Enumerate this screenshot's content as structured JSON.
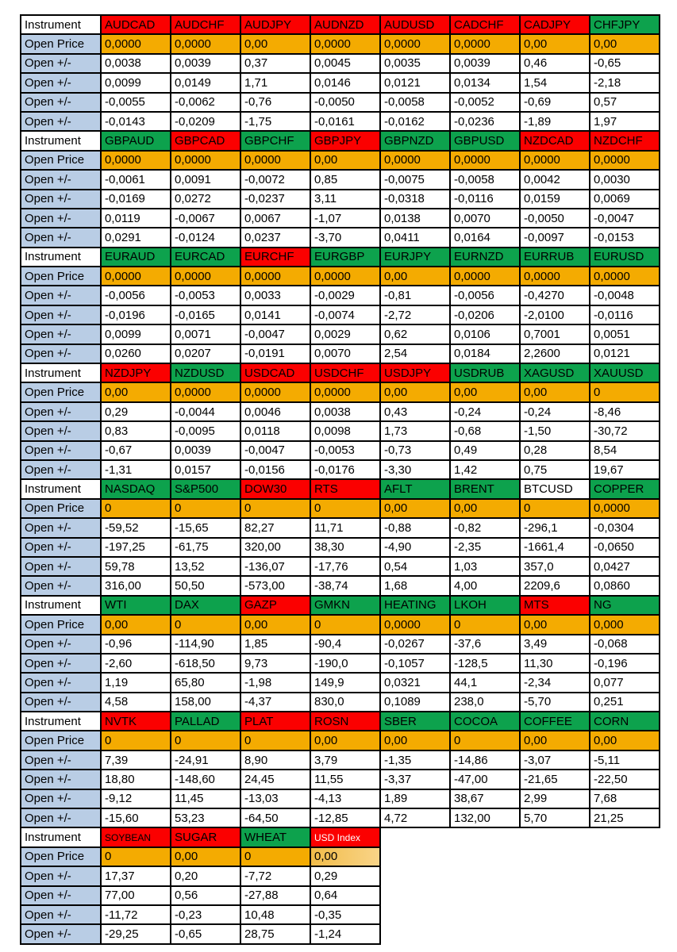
{
  "page": {
    "background": "#FFFFFF"
  },
  "table": {
    "row_labels": {
      "instrument": "Instrument",
      "open_price": "Open Price",
      "open_change": "Open +/-"
    },
    "colors": {
      "red": "#FB0000",
      "green": "#0DA24D",
      "white": "#FFFFFF",
      "orange": "#F4AB01",
      "orange_light_start": "#F1BC49",
      "orange_light_end": "#F9D488",
      "label_blue": "#B9CDE5",
      "label_white": "#FFFFFF",
      "border": "#000000",
      "cell_text": "#000000",
      "white_text": "#FFFFFF"
    },
    "blocks": [
      {
        "instruments": [
          {
            "name": "AUDCAD",
            "color": "red",
            "price": "0,0000",
            "changes": [
              "0,0038",
              "0,0099",
              "-0,0055",
              "-0,0143"
            ]
          },
          {
            "name": "AUDCHF",
            "color": "red",
            "price": "0,0000",
            "changes": [
              "0,0039",
              "0,0149",
              "-0,0062",
              "-0,0209"
            ]
          },
          {
            "name": "AUDJPY",
            "color": "red",
            "price": "0,00",
            "changes": [
              "0,37",
              "1,71",
              "-0,76",
              "-1,75"
            ]
          },
          {
            "name": "AUDNZD",
            "color": "red",
            "price": "0,0000",
            "changes": [
              "0,0045",
              "0,0146",
              "-0,0050",
              "-0,0161"
            ]
          },
          {
            "name": "AUDUSD",
            "color": "red",
            "price": "0,0000",
            "changes": [
              "0,0035",
              "0,0121",
              "-0,0058",
              "-0,0162"
            ]
          },
          {
            "name": "CADCHF",
            "color": "red",
            "price": "0,0000",
            "changes": [
              "0,0039",
              "0,0134",
              "-0,0052",
              "-0,0236"
            ]
          },
          {
            "name": "CADJPY",
            "color": "red",
            "price": "0,00",
            "changes": [
              "0,46",
              "1,54",
              "-0,69",
              "-1,89"
            ]
          },
          {
            "name": "CHFJPY",
            "color": "green",
            "price": "0,00",
            "changes": [
              "-0,65",
              "-2,18",
              "0,57",
              "1,97"
            ]
          }
        ]
      },
      {
        "instruments": [
          {
            "name": "GBPAUD",
            "color": "green",
            "price": "0,0000",
            "changes": [
              "-0,0061",
              "-0,0169",
              "0,0119",
              "0,0291"
            ]
          },
          {
            "name": "GBPCAD",
            "color": "red",
            "price": "0,0000",
            "changes": [
              "0,0091",
              "0,0272",
              "-0,0067",
              "-0,0124"
            ]
          },
          {
            "name": "GBPCHF",
            "color": "green",
            "price": "0,0000",
            "changes": [
              "-0,0072",
              "-0,0237",
              "0,0067",
              "0,0237"
            ]
          },
          {
            "name": "GBPJPY",
            "color": "red",
            "price": "0,00",
            "changes": [
              "0,85",
              "3,11",
              "-1,07",
              "-3,70"
            ]
          },
          {
            "name": "GBPNZD",
            "color": "green",
            "price": "0,0000",
            "changes": [
              "-0,0075",
              "-0,0318",
              "0,0138",
              "0,0411"
            ]
          },
          {
            "name": "GBPUSD",
            "color": "green",
            "price": "0,0000",
            "changes": [
              "-0,0058",
              "-0,0116",
              "0,0070",
              "0,0164"
            ]
          },
          {
            "name": "NZDCAD",
            "color": "red",
            "price": "0,0000",
            "changes": [
              "0,0042",
              "0,0159",
              "-0,0050",
              "-0,0097"
            ]
          },
          {
            "name": "NZDCHF",
            "color": "red",
            "price": "0,0000",
            "changes": [
              "0,0030",
              "0,0069",
              "-0,0047",
              "-0,0153"
            ]
          }
        ]
      },
      {
        "instruments": [
          {
            "name": "EURAUD",
            "color": "green",
            "price": "0,0000",
            "changes": [
              "-0,0056",
              "-0,0196",
              "0,0099",
              "0,0260"
            ]
          },
          {
            "name": "EURCAD",
            "color": "green",
            "price": "0,0000",
            "changes": [
              "-0,0053",
              "-0,0165",
              "0,0071",
              "0,0207"
            ]
          },
          {
            "name": "EURCHF",
            "color": "red",
            "price": "0,0000",
            "changes": [
              "0,0033",
              "0,0141",
              "-0,0047",
              "-0,0191"
            ]
          },
          {
            "name": "EURGBP",
            "color": "green",
            "price": "0,0000",
            "changes": [
              "-0,0029",
              "-0,0074",
              "0,0029",
              "0,0070"
            ]
          },
          {
            "name": "EURJPY",
            "color": "green",
            "price": "0,00",
            "changes": [
              "-0,81",
              "-2,72",
              "0,62",
              "2,54"
            ]
          },
          {
            "name": "EURNZD",
            "color": "green",
            "price": "0,0000",
            "changes": [
              "-0,0056",
              "-0,0206",
              "0,0106",
              "0,0184"
            ]
          },
          {
            "name": "EURRUB",
            "color": "green",
            "price": "0,0000",
            "changes": [
              "-0,4270",
              "-2,0100",
              "0,7001",
              "2,2600"
            ]
          },
          {
            "name": "EURUSD",
            "color": "green",
            "price": "0,0000",
            "changes": [
              "-0,0048",
              "-0,0116",
              "0,0051",
              "0,0121"
            ]
          }
        ]
      },
      {
        "instruments": [
          {
            "name": "NZDJPY",
            "color": "red",
            "price": "0,00",
            "changes": [
              "0,29",
              "0,83",
              "-0,67",
              "-1,31"
            ]
          },
          {
            "name": "NZDUSD",
            "color": "green",
            "price": "0,0000",
            "changes": [
              "-0,0044",
              "-0,0095",
              "0,0039",
              "0,0157"
            ]
          },
          {
            "name": "USDCAD",
            "color": "red",
            "price": "0,0000",
            "changes": [
              "0,0046",
              "0,0118",
              "-0,0047",
              "-0,0156"
            ]
          },
          {
            "name": "USDCHF",
            "color": "red",
            "price": "0,0000",
            "changes": [
              "0,0038",
              "0,0098",
              "-0,0053",
              "-0,0176"
            ]
          },
          {
            "name": "USDJPY",
            "color": "red",
            "price": "0,00",
            "changes": [
              "0,43",
              "1,73",
              "-0,73",
              "-3,30"
            ]
          },
          {
            "name": "USDRUB",
            "color": "green",
            "price": "0,00",
            "changes": [
              "-0,24",
              "-0,68",
              "0,49",
              "1,42"
            ]
          },
          {
            "name": "XAGUSD",
            "color": "green",
            "price": "0,00",
            "changes": [
              "-0,24",
              "-1,50",
              "0,28",
              "0,75"
            ]
          },
          {
            "name": "XAUUSD",
            "color": "green",
            "price": "0",
            "changes": [
              "-8,46",
              "-30,72",
              "8,54",
              "19,67"
            ]
          }
        ]
      },
      {
        "instruments": [
          {
            "name": "NASDAQ",
            "color": "green",
            "price": "0",
            "changes": [
              "-59,52",
              "-197,25",
              "59,78",
              "316,00"
            ]
          },
          {
            "name": "S&P500",
            "color": "green",
            "price": "0",
            "changes": [
              "-15,65",
              "-61,75",
              "13,52",
              "50,50"
            ]
          },
          {
            "name": "DOW30",
            "color": "red",
            "price": "0",
            "changes": [
              "82,27",
              "320,00",
              "-136,07",
              "-573,00"
            ]
          },
          {
            "name": "RTS",
            "color": "red",
            "price": "0",
            "changes": [
              "11,71",
              "38,30",
              "-17,76",
              "-38,74"
            ]
          },
          {
            "name": "AFLT",
            "color": "green",
            "price": "0,00",
            "changes": [
              "-0,88",
              "-4,90",
              "0,54",
              "1,68"
            ]
          },
          {
            "name": "BRENT",
            "color": "green",
            "price": "0,00",
            "changes": [
              "-0,82",
              "-2,35",
              "1,03",
              "4,00"
            ]
          },
          {
            "name": "BTCUSD",
            "color": "white",
            "price": "0",
            "changes": [
              "-296,1",
              "-1661,4",
              "357,0",
              "2209,6"
            ]
          },
          {
            "name": "COPPER",
            "color": "green",
            "price": "0,0000",
            "changes": [
              "-0,0304",
              "-0,0650",
              "0,0427",
              "0,0860"
            ]
          }
        ]
      },
      {
        "instruments": [
          {
            "name": "WTI",
            "color": "green",
            "price": "0,00",
            "changes": [
              "-0,96",
              "-2,60",
              "1,19",
              "4,58"
            ]
          },
          {
            "name": "DAX",
            "color": "green",
            "price": "0",
            "changes": [
              "-114,90",
              "-618,50",
              "65,80",
              "158,00"
            ]
          },
          {
            "name": "GAZP",
            "color": "red",
            "price": "0,00",
            "changes": [
              "1,85",
              "9,73",
              "-1,98",
              "-4,37"
            ]
          },
          {
            "name": "GMKN",
            "color": "green",
            "price": "0",
            "changes": [
              "-90,4",
              "-190,0",
              "149,9",
              "830,0"
            ]
          },
          {
            "name": "HEATING",
            "color": "green",
            "price": "0,0000",
            "changes": [
              "-0,0267",
              "-0,1057",
              "0,0321",
              "0,1089"
            ]
          },
          {
            "name": "LKOH",
            "color": "green",
            "price": "0",
            "changes": [
              "-37,6",
              "-128,5",
              "44,1",
              "238,0"
            ]
          },
          {
            "name": "MTS",
            "color": "red",
            "price": "0,00",
            "changes": [
              "3,49",
              "11,30",
              "-2,34",
              "-5,70"
            ]
          },
          {
            "name": "NG",
            "color": "green",
            "price": "0,000",
            "changes": [
              "-0,068",
              "-0,196",
              "0,077",
              "0,251"
            ]
          }
        ]
      },
      {
        "instruments": [
          {
            "name": "NVTK",
            "color": "red",
            "price": "0",
            "changes": [
              "7,39",
              "18,80",
              "-9,12",
              "-15,60"
            ]
          },
          {
            "name": "PALLAD",
            "color": "green",
            "price": "0",
            "changes": [
              "-24,91",
              "-148,60",
              "11,45",
              "53,23"
            ]
          },
          {
            "name": "PLAT",
            "color": "red",
            "price": "0",
            "changes": [
              "8,90",
              "24,45",
              "-13,03",
              "-64,50"
            ]
          },
          {
            "name": "ROSN",
            "color": "red",
            "price": "0,00",
            "changes": [
              "3,79",
              "11,55",
              "-4,13",
              "-12,85"
            ]
          },
          {
            "name": "SBER",
            "color": "green",
            "price": "0,00",
            "changes": [
              "-1,35",
              "-3,37",
              "1,89",
              "4,72"
            ]
          },
          {
            "name": "COCOA",
            "color": "green",
            "price": "0",
            "changes": [
              "-14,86",
              "-47,00",
              "38,67",
              "132,00"
            ]
          },
          {
            "name": "COFFEE",
            "color": "green",
            "price": "0,00",
            "changes": [
              "-3,07",
              "-21,65",
              "2,99",
              "5,70"
            ]
          },
          {
            "name": "CORN",
            "color": "green",
            "price": "0,00",
            "changes": [
              "-5,11",
              "-22,50",
              "7,68",
              "21,25"
            ]
          }
        ]
      },
      {
        "instruments": [
          {
            "name": "SOYBEAN",
            "color": "red",
            "small": true,
            "price": "0",
            "changes": [
              "17,37",
              "77,00",
              "-11,72",
              "-29,25"
            ]
          },
          {
            "name": "SUGAR",
            "color": "red",
            "price": "0,00",
            "changes": [
              "0,20",
              "0,56",
              "-0,23",
              "-0,65"
            ]
          },
          {
            "name": "WHEAT",
            "color": "green",
            "price": "0",
            "changes": [
              "-7,72",
              "-27,88",
              "10,48",
              "28,75"
            ]
          },
          {
            "name": "USD Index",
            "color": "red",
            "small": true,
            "text_color": "white",
            "price": "0,00",
            "price_light": true,
            "changes": [
              "0,29",
              "0,64",
              "-0,35",
              "-1,24"
            ]
          }
        ]
      }
    ]
  }
}
